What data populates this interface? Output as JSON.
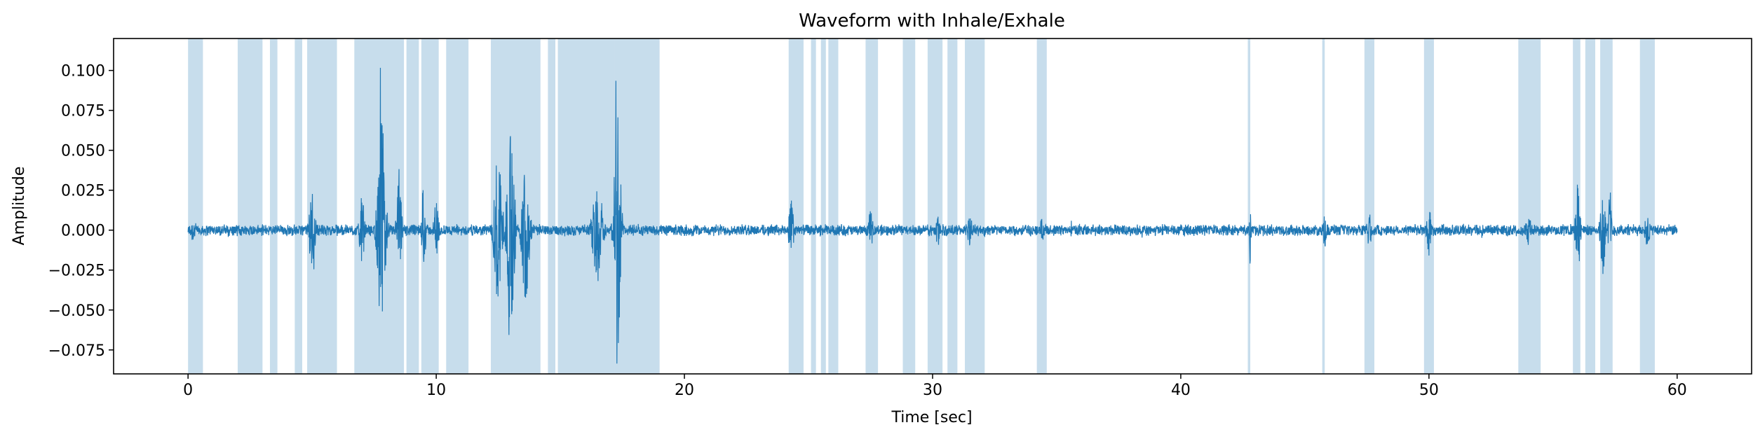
{
  "chart_data": {
    "type": "line",
    "title": "Waveform with Inhale/Exhale",
    "xlabel": "Time [sec]",
    "ylabel": "Amplitude",
    "xlim": [
      -3,
      63
    ],
    "ylim": [
      -0.09,
      0.12
    ],
    "xticks": [
      0,
      10,
      20,
      30,
      40,
      50,
      60
    ],
    "xtick_labels": [
      "0",
      "10",
      "20",
      "30",
      "40",
      "50",
      "60"
    ],
    "yticks": [
      -0.075,
      -0.05,
      -0.025,
      0.0,
      0.025,
      0.05,
      0.075,
      0.1
    ],
    "ytick_labels": [
      "−0.075",
      "−0.050",
      "−0.025",
      "0.000",
      "0.025",
      "0.050",
      "0.075",
      "0.100"
    ],
    "grid": false,
    "series_color": "#1f77b4",
    "span_color": "#1f77b4",
    "span_alpha": 0.25,
    "waveform": {
      "name": "",
      "x_range": [
        0,
        60
      ],
      "baseline_amplitude": 0.004,
      "bursts": [
        {
          "t": 0.2,
          "width": 0.4,
          "amp": 0.008
        },
        {
          "t": 5.0,
          "width": 0.4,
          "amp": 0.025
        },
        {
          "t": 7.0,
          "width": 0.3,
          "amp": 0.024
        },
        {
          "t": 7.8,
          "width": 0.5,
          "amp": 0.072
        },
        {
          "t": 8.5,
          "width": 0.3,
          "amp": 0.04
        },
        {
          "t": 9.5,
          "width": 0.3,
          "amp": 0.02
        },
        {
          "t": 10.0,
          "width": 0.3,
          "amp": 0.02
        },
        {
          "t": 12.5,
          "width": 0.5,
          "amp": 0.055
        },
        {
          "t": 13.0,
          "width": 0.5,
          "amp": 0.06
        },
        {
          "t": 13.6,
          "width": 0.5,
          "amp": 0.045
        },
        {
          "t": 16.5,
          "width": 0.6,
          "amp": 0.035
        },
        {
          "t": 17.3,
          "width": 0.4,
          "amp": 0.09
        },
        {
          "t": 24.3,
          "width": 0.3,
          "amp": 0.02
        },
        {
          "t": 27.5,
          "width": 0.3,
          "amp": 0.012
        },
        {
          "t": 30.2,
          "width": 0.3,
          "amp": 0.012
        },
        {
          "t": 31.5,
          "width": 0.3,
          "amp": 0.01
        },
        {
          "t": 34.4,
          "width": 0.3,
          "amp": 0.008
        },
        {
          "t": 42.8,
          "width": 0.1,
          "amp": 0.025
        },
        {
          "t": 45.8,
          "width": 0.2,
          "amp": 0.012
        },
        {
          "t": 47.6,
          "width": 0.3,
          "amp": 0.012
        },
        {
          "t": 50.0,
          "width": 0.3,
          "amp": 0.018
        },
        {
          "t": 54.0,
          "width": 0.4,
          "amp": 0.01
        },
        {
          "t": 56.0,
          "width": 0.3,
          "amp": 0.03
        },
        {
          "t": 57.0,
          "width": 0.3,
          "amp": 0.03
        },
        {
          "t": 57.3,
          "width": 0.2,
          "amp": 0.03
        },
        {
          "t": 58.8,
          "width": 0.3,
          "amp": 0.012
        }
      ]
    },
    "spans": [
      [
        0.0,
        0.6
      ],
      [
        2.0,
        3.0
      ],
      [
        3.3,
        3.6
      ],
      [
        4.3,
        4.6
      ],
      [
        4.8,
        6.0
      ],
      [
        6.7,
        7.7
      ],
      [
        7.7,
        8.7
      ],
      [
        8.8,
        9.3
      ],
      [
        9.4,
        10.1
      ],
      [
        10.4,
        11.3
      ],
      [
        12.2,
        14.2
      ],
      [
        14.5,
        14.8
      ],
      [
        14.9,
        17.2
      ],
      [
        17.2,
        18.4
      ],
      [
        18.4,
        19.0
      ],
      [
        24.2,
        24.8
      ],
      [
        25.1,
        25.3
      ],
      [
        25.5,
        25.7
      ],
      [
        25.8,
        26.2
      ],
      [
        27.3,
        27.8
      ],
      [
        28.8,
        29.3
      ],
      [
        29.8,
        30.4
      ],
      [
        30.6,
        31.0
      ],
      [
        31.3,
        32.1
      ],
      [
        34.2,
        34.6
      ],
      [
        42.7,
        42.8
      ],
      [
        45.7,
        45.8
      ],
      [
        47.4,
        47.8
      ],
      [
        49.8,
        50.2
      ],
      [
        53.6,
        54.5
      ],
      [
        55.8,
        56.1
      ],
      [
        56.3,
        56.7
      ],
      [
        56.9,
        57.4
      ],
      [
        58.5,
        59.1
      ]
    ]
  }
}
